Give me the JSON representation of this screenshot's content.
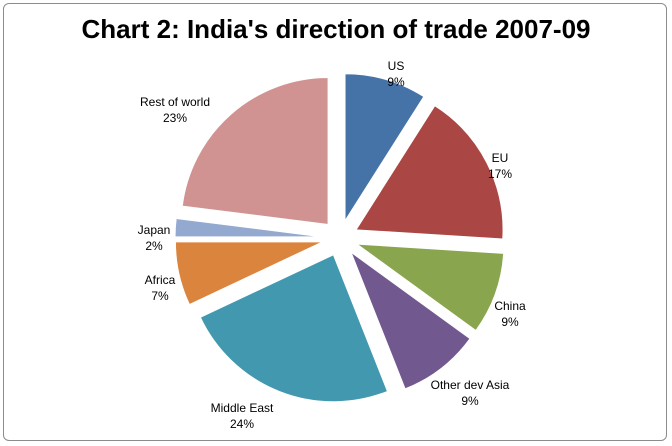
{
  "chart_data": {
    "type": "pie",
    "title": "Chart 2: India's direction of trade 2007-09",
    "slices": [
      {
        "label": "US",
        "value": 9,
        "value_label": "9%",
        "color": "#4572A7"
      },
      {
        "label": "EU",
        "value": 17,
        "value_label": "17%",
        "color": "#AA4643"
      },
      {
        "label": "China",
        "value": 9,
        "value_label": "9%",
        "color": "#89A54E"
      },
      {
        "label": "Other dev Asia",
        "value": 9,
        "value_label": "9%",
        "color": "#71588F"
      },
      {
        "label": "Middle East",
        "value": 24,
        "value_label": "24%",
        "color": "#4198AF"
      },
      {
        "label": "Africa",
        "value": 7,
        "value_label": "7%",
        "color": "#DB843D"
      },
      {
        "label": "Japan",
        "value": 2,
        "value_label": "2%",
        "color": "#93A9CF"
      },
      {
        "label": "Rest of world",
        "value": 23,
        "value_label": "23%",
        "color": "#D19392"
      }
    ],
    "exploded": true
  }
}
